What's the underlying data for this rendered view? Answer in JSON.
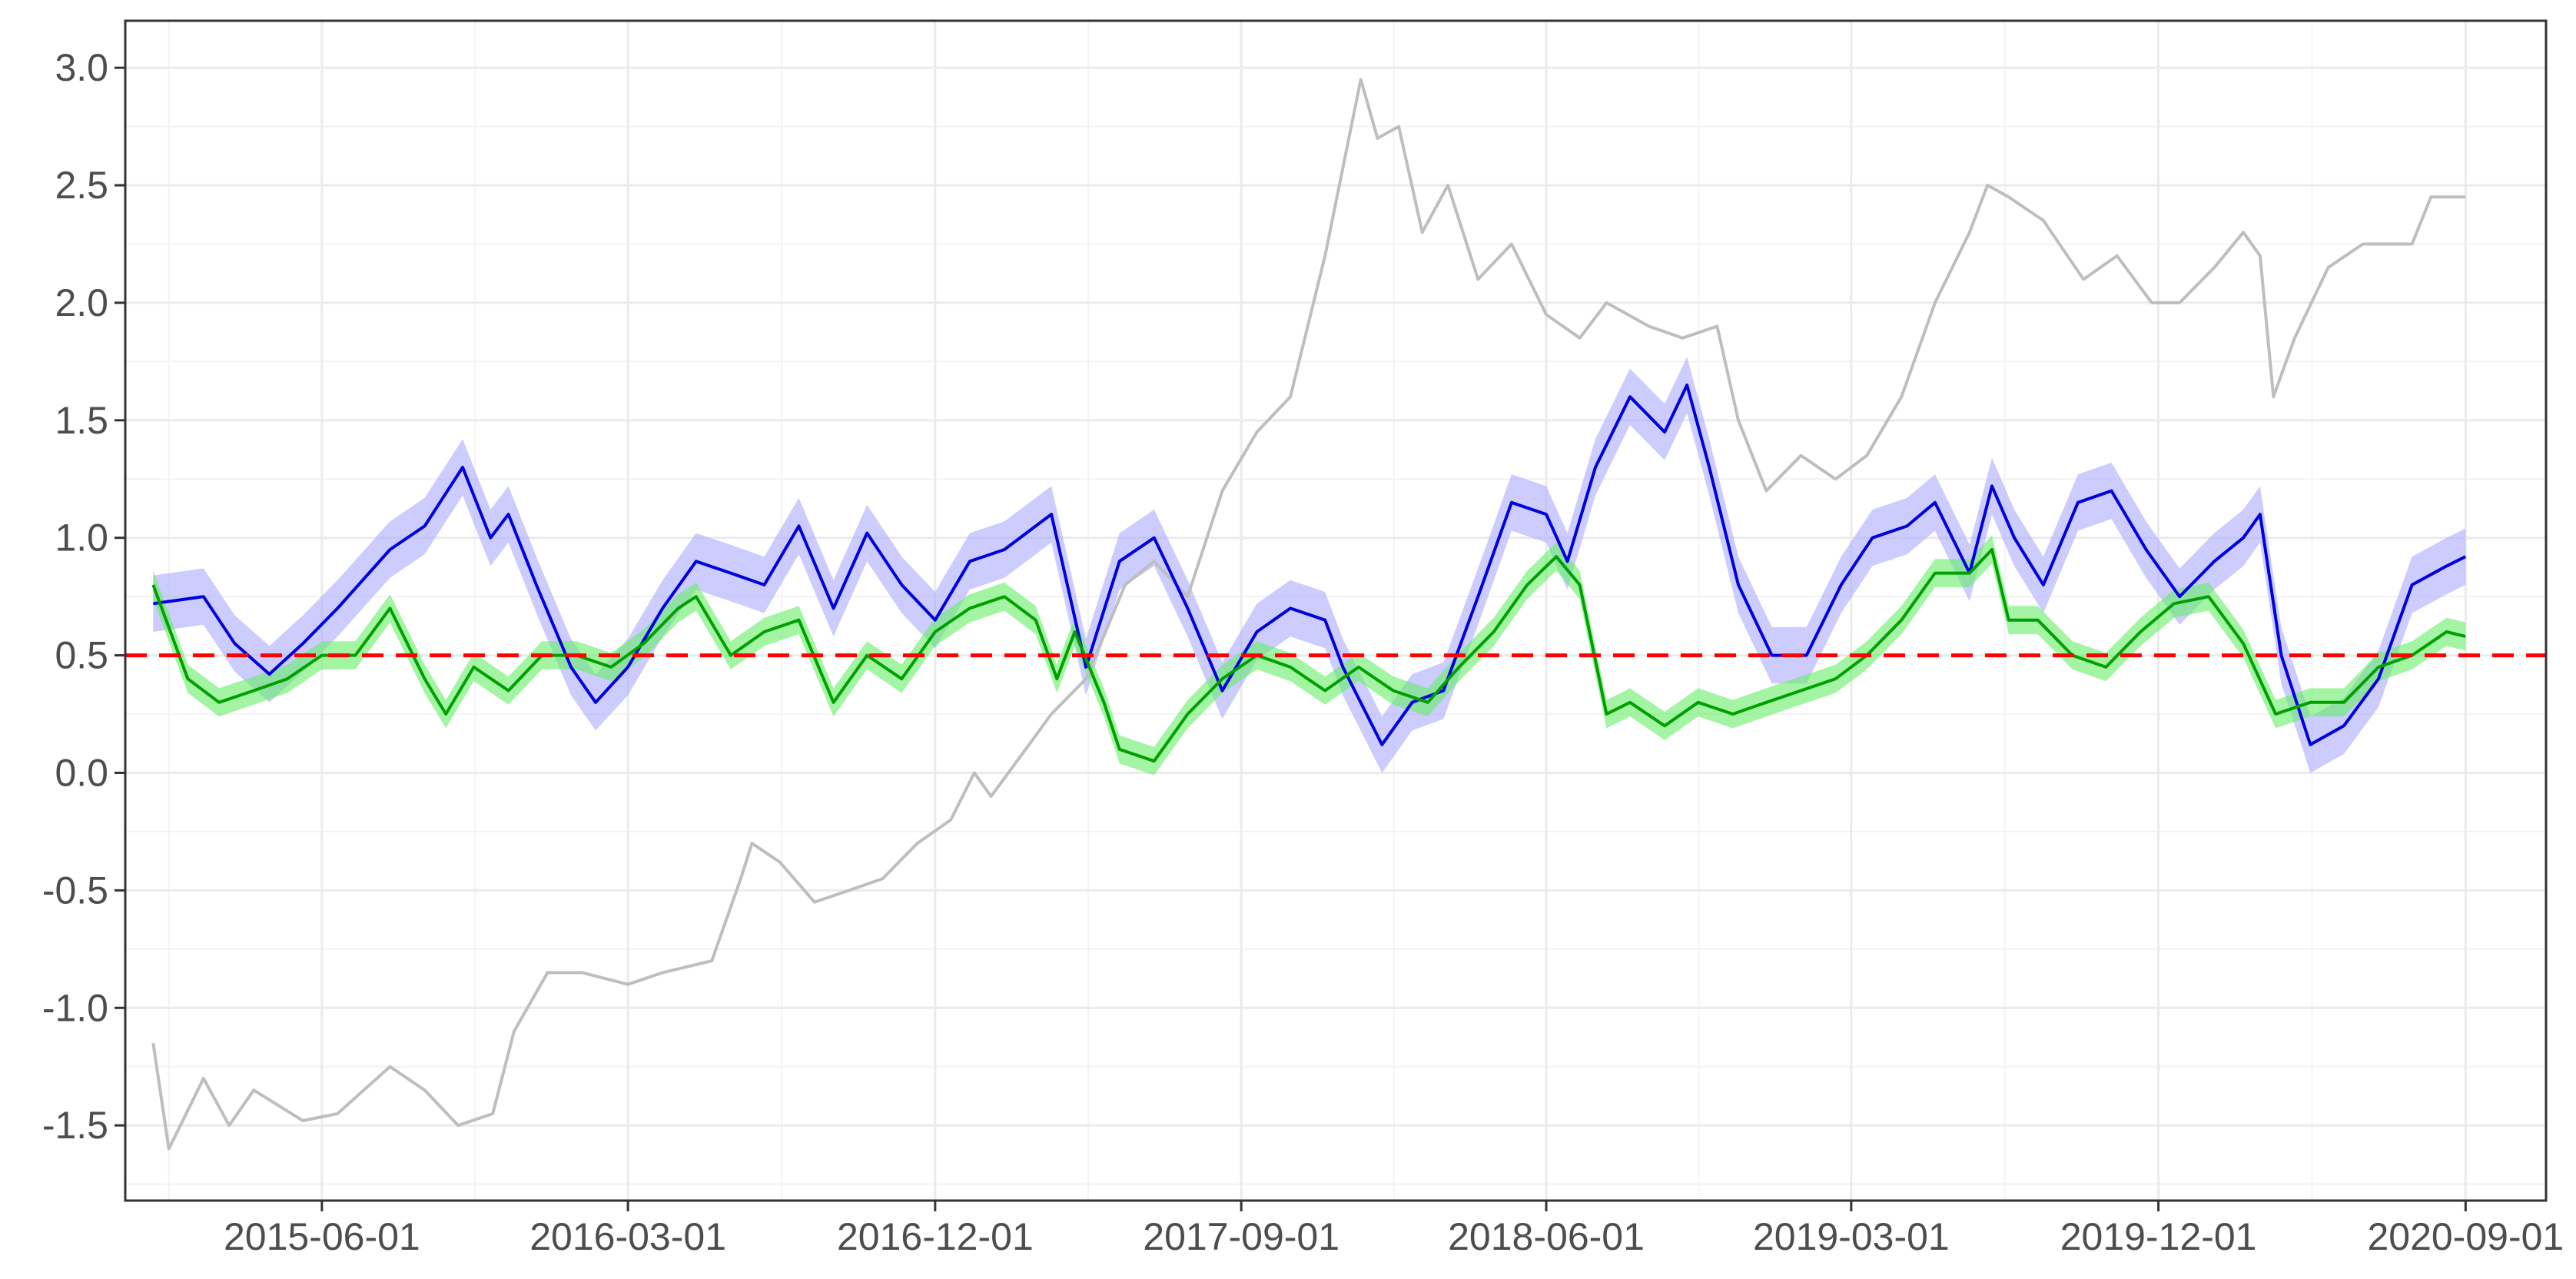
{
  "chart_data": {
    "type": "line",
    "title": "",
    "xlabel": "",
    "ylabel": "",
    "x_ticks": [
      "2015-06-01",
      "2016-03-01",
      "2016-12-01",
      "2017-09-01",
      "2018-06-01",
      "2019-03-01",
      "2019-12-01",
      "2020-09-01"
    ],
    "y_ticks": [
      "3.0",
      "2.5",
      "2.0",
      "1.5",
      "1.0",
      "0.5",
      "0.0",
      "-0.5",
      "-1.0",
      "-1.5"
    ],
    "xlim": [
      "2014-12-07",
      "2020-11-12"
    ],
    "ylim": [
      -1.82,
      3.2
    ],
    "grid": true,
    "reference_line": {
      "y": 0.5,
      "color": "#ff0000",
      "style": "dashed"
    },
    "series": [
      {
        "color": "#bebebe",
        "points": [
          [
            "2015-01-01",
            -1.15
          ],
          [
            "2015-01-15",
            -1.6
          ],
          [
            "2015-02-15",
            -1.3
          ],
          [
            "2015-03-10",
            -1.5
          ],
          [
            "2015-04-01",
            -1.35
          ],
          [
            "2015-05-15",
            -1.48
          ],
          [
            "2015-06-15",
            -1.45
          ],
          [
            "2015-08-01",
            -1.25
          ],
          [
            "2015-09-01",
            -1.35
          ],
          [
            "2015-10-01",
            -1.5
          ],
          [
            "2015-11-01",
            -1.45
          ],
          [
            "2015-11-20",
            -1.1
          ],
          [
            "2015-12-20",
            -0.85
          ],
          [
            "2016-01-20",
            -0.85
          ],
          [
            "2016-03-01",
            -0.9
          ],
          [
            "2016-04-01",
            -0.85
          ],
          [
            "2016-05-15",
            -0.8
          ],
          [
            "2016-06-10",
            -0.45
          ],
          [
            "2016-06-20",
            -0.3
          ],
          [
            "2016-07-15",
            -0.38
          ],
          [
            "2016-08-15",
            -0.55
          ],
          [
            "2016-09-15",
            -0.5
          ],
          [
            "2016-10-15",
            -0.45
          ],
          [
            "2016-11-15",
            -0.3
          ],
          [
            "2016-12-15",
            -0.2
          ],
          [
            "2017-01-05",
            0.0
          ],
          [
            "2017-01-20",
            -0.1
          ],
          [
            "2017-02-20",
            0.1
          ],
          [
            "2017-03-15",
            0.25
          ],
          [
            "2017-04-15",
            0.4
          ],
          [
            "2017-05-20",
            0.8
          ],
          [
            "2017-06-15",
            0.9
          ],
          [
            "2017-07-15",
            0.75
          ],
          [
            "2017-08-15",
            1.2
          ],
          [
            "2017-09-15",
            1.45
          ],
          [
            "2017-10-15",
            1.6
          ],
          [
            "2017-11-15",
            2.2
          ],
          [
            "2017-12-17",
            2.95
          ],
          [
            "2018-01-01",
            2.7
          ],
          [
            "2018-01-20",
            2.75
          ],
          [
            "2018-02-10",
            2.3
          ],
          [
            "2018-03-05",
            2.5
          ],
          [
            "2018-04-01",
            2.1
          ],
          [
            "2018-05-01",
            2.25
          ],
          [
            "2018-06-01",
            1.95
          ],
          [
            "2018-07-01",
            1.85
          ],
          [
            "2018-07-25",
            2.0
          ],
          [
            "2018-09-01",
            1.9
          ],
          [
            "2018-10-01",
            1.85
          ],
          [
            "2018-11-01",
            1.9
          ],
          [
            "2018-11-20",
            1.5
          ],
          [
            "2018-12-15",
            1.2
          ],
          [
            "2019-01-15",
            1.35
          ],
          [
            "2019-02-15",
            1.25
          ],
          [
            "2019-03-15",
            1.35
          ],
          [
            "2019-04-15",
            1.6
          ],
          [
            "2019-05-15",
            2.0
          ],
          [
            "2019-06-15",
            2.3
          ],
          [
            "2019-07-01",
            2.5
          ],
          [
            "2019-07-20",
            2.45
          ],
          [
            "2019-08-20",
            2.35
          ],
          [
            "2019-09-25",
            2.1
          ],
          [
            "2019-10-25",
            2.2
          ],
          [
            "2019-11-25",
            2.0
          ],
          [
            "2019-12-20",
            2.0
          ],
          [
            "2020-01-20",
            2.15
          ],
          [
            "2020-02-15",
            2.3
          ],
          [
            "2020-03-01",
            2.2
          ],
          [
            "2020-03-13",
            1.6
          ],
          [
            "2020-04-01",
            1.85
          ],
          [
            "2020-05-01",
            2.15
          ],
          [
            "2020-06-01",
            2.25
          ],
          [
            "2020-07-15",
            2.25
          ],
          [
            "2020-08-01",
            2.45
          ],
          [
            "2020-09-01",
            2.45
          ]
        ]
      },
      {
        "color": "#0000dd",
        "band_color": "#aaaaff",
        "band_width": 0.12,
        "points": [
          [
            "2015-01-01",
            0.72
          ],
          [
            "2015-02-15",
            0.75
          ],
          [
            "2015-03-15",
            0.55
          ],
          [
            "2015-04-15",
            0.42
          ],
          [
            "2015-05-15",
            0.55
          ],
          [
            "2015-06-15",
            0.7
          ],
          [
            "2015-08-01",
            0.95
          ],
          [
            "2015-09-01",
            1.05
          ],
          [
            "2015-10-05",
            1.3
          ],
          [
            "2015-10-30",
            1.0
          ],
          [
            "2015-11-15",
            1.1
          ],
          [
            "2015-12-10",
            0.8
          ],
          [
            "2016-01-10",
            0.45
          ],
          [
            "2016-02-01",
            0.3
          ],
          [
            "2016-03-01",
            0.45
          ],
          [
            "2016-04-01",
            0.7
          ],
          [
            "2016-05-01",
            0.9
          ],
          [
            "2016-06-01",
            0.85
          ],
          [
            "2016-07-01",
            0.8
          ],
          [
            "2016-08-01",
            1.05
          ],
          [
            "2016-09-01",
            0.7
          ],
          [
            "2016-10-01",
            1.02
          ],
          [
            "2016-11-01",
            0.8
          ],
          [
            "2016-12-01",
            0.65
          ],
          [
            "2017-01-01",
            0.9
          ],
          [
            "2017-02-01",
            0.95
          ],
          [
            "2017-03-01",
            1.05
          ],
          [
            "2017-03-15",
            1.1
          ],
          [
            "2017-04-15",
            0.45
          ],
          [
            "2017-05-15",
            0.9
          ],
          [
            "2017-06-15",
            1.0
          ],
          [
            "2017-07-15",
            0.7
          ],
          [
            "2017-08-15",
            0.35
          ],
          [
            "2017-09-15",
            0.6
          ],
          [
            "2017-10-15",
            0.7
          ],
          [
            "2017-11-15",
            0.65
          ],
          [
            "2017-12-01",
            0.45
          ],
          [
            "2018-01-05",
            0.12
          ],
          [
            "2018-02-01",
            0.3
          ],
          [
            "2018-03-01",
            0.35
          ],
          [
            "2018-04-01",
            0.75
          ],
          [
            "2018-05-01",
            1.15
          ],
          [
            "2018-06-01",
            1.1
          ],
          [
            "2018-06-20",
            0.9
          ],
          [
            "2018-07-15",
            1.3
          ],
          [
            "2018-08-15",
            1.6
          ],
          [
            "2018-09-15",
            1.45
          ],
          [
            "2018-10-05",
            1.65
          ],
          [
            "2018-10-25",
            1.3
          ],
          [
            "2018-11-20",
            0.8
          ],
          [
            "2018-12-20",
            0.5
          ],
          [
            "2019-01-20",
            0.5
          ],
          [
            "2019-02-20",
            0.8
          ],
          [
            "2019-03-20",
            1.0
          ],
          [
            "2019-04-20",
            1.05
          ],
          [
            "2019-05-15",
            1.15
          ],
          [
            "2019-06-15",
            0.85
          ],
          [
            "2019-07-05",
            1.22
          ],
          [
            "2019-07-25",
            1.0
          ],
          [
            "2019-08-20",
            0.8
          ],
          [
            "2019-09-20",
            1.15
          ],
          [
            "2019-10-20",
            1.2
          ],
          [
            "2019-11-20",
            0.95
          ],
          [
            "2019-12-20",
            0.75
          ],
          [
            "2020-01-20",
            0.9
          ],
          [
            "2020-02-15",
            1.0
          ],
          [
            "2020-03-01",
            1.1
          ],
          [
            "2020-03-20",
            0.5
          ],
          [
            "2020-04-15",
            0.12
          ],
          [
            "2020-05-15",
            0.2
          ],
          [
            "2020-06-15",
            0.4
          ],
          [
            "2020-07-15",
            0.8
          ],
          [
            "2020-08-15",
            0.88
          ],
          [
            "2020-09-01",
            0.92
          ]
        ]
      },
      {
        "color": "#00a000",
        "band_color": "#66ee66",
        "band_width": 0.06,
        "points": [
          [
            "2015-01-01",
            0.8
          ],
          [
            "2015-02-01",
            0.4
          ],
          [
            "2015-03-01",
            0.3
          ],
          [
            "2015-04-01",
            0.35
          ],
          [
            "2015-05-01",
            0.4
          ],
          [
            "2015-06-01",
            0.5
          ],
          [
            "2015-07-01",
            0.5
          ],
          [
            "2015-08-01",
            0.7
          ],
          [
            "2015-09-01",
            0.4
          ],
          [
            "2015-09-20",
            0.25
          ],
          [
            "2015-10-15",
            0.45
          ],
          [
            "2015-11-15",
            0.35
          ],
          [
            "2015-12-15",
            0.5
          ],
          [
            "2016-01-15",
            0.5
          ],
          [
            "2016-02-15",
            0.45
          ],
          [
            "2016-03-15",
            0.55
          ],
          [
            "2016-04-15",
            0.7
          ],
          [
            "2016-05-01",
            0.75
          ],
          [
            "2016-06-01",
            0.5
          ],
          [
            "2016-07-01",
            0.6
          ],
          [
            "2016-08-01",
            0.65
          ],
          [
            "2016-09-01",
            0.3
          ],
          [
            "2016-10-01",
            0.5
          ],
          [
            "2016-11-01",
            0.4
          ],
          [
            "2016-12-01",
            0.6
          ],
          [
            "2017-01-01",
            0.7
          ],
          [
            "2017-02-01",
            0.75
          ],
          [
            "2017-03-01",
            0.65
          ],
          [
            "2017-03-20",
            0.4
          ],
          [
            "2017-04-05",
            0.6
          ],
          [
            "2017-05-01",
            0.3
          ],
          [
            "2017-05-15",
            0.1
          ],
          [
            "2017-06-15",
            0.05
          ],
          [
            "2017-07-15",
            0.25
          ],
          [
            "2017-08-15",
            0.4
          ],
          [
            "2017-09-15",
            0.5
          ],
          [
            "2017-10-15",
            0.45
          ],
          [
            "2017-11-15",
            0.35
          ],
          [
            "2017-12-15",
            0.45
          ],
          [
            "2018-01-15",
            0.35
          ],
          [
            "2018-02-15",
            0.3
          ],
          [
            "2018-03-15",
            0.45
          ],
          [
            "2018-04-15",
            0.6
          ],
          [
            "2018-05-15",
            0.8
          ],
          [
            "2018-06-10",
            0.92
          ],
          [
            "2018-07-01",
            0.8
          ],
          [
            "2018-07-25",
            0.25
          ],
          [
            "2018-08-15",
            0.3
          ],
          [
            "2018-09-15",
            0.2
          ],
          [
            "2018-10-15",
            0.3
          ],
          [
            "2018-11-15",
            0.25
          ],
          [
            "2018-12-15",
            0.3
          ],
          [
            "2019-01-15",
            0.35
          ],
          [
            "2019-02-15",
            0.4
          ],
          [
            "2019-03-15",
            0.5
          ],
          [
            "2019-04-15",
            0.65
          ],
          [
            "2019-05-15",
            0.85
          ],
          [
            "2019-06-15",
            0.85
          ],
          [
            "2019-07-05",
            0.95
          ],
          [
            "2019-07-20",
            0.65
          ],
          [
            "2019-08-15",
            0.65
          ],
          [
            "2019-09-15",
            0.5
          ],
          [
            "2019-10-15",
            0.45
          ],
          [
            "2019-11-15",
            0.6
          ],
          [
            "2019-12-15",
            0.72
          ],
          [
            "2020-01-15",
            0.75
          ],
          [
            "2020-02-15",
            0.55
          ],
          [
            "2020-03-15",
            0.25
          ],
          [
            "2020-04-15",
            0.3
          ],
          [
            "2020-05-15",
            0.3
          ],
          [
            "2020-06-15",
            0.45
          ],
          [
            "2020-07-15",
            0.5
          ],
          [
            "2020-08-15",
            0.6
          ],
          [
            "2020-09-01",
            0.58
          ]
        ]
      }
    ]
  }
}
